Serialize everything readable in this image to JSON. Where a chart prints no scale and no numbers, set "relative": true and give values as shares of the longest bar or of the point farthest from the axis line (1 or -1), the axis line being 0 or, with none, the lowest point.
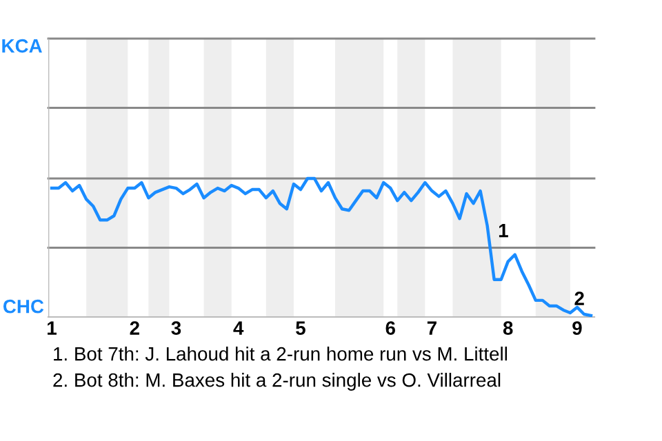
{
  "chart_data": {
    "type": "line",
    "relative": true,
    "categories": [
      "1",
      null,
      null,
      null,
      null,
      null,
      null,
      null,
      null,
      null,
      null,
      null,
      "2",
      null,
      null,
      null,
      null,
      null,
      "3",
      null,
      null,
      null,
      null,
      null,
      null,
      null,
      null,
      "4",
      null,
      null,
      null,
      null,
      null,
      null,
      null,
      null,
      "5",
      null,
      null,
      null,
      null,
      null,
      null,
      null,
      null,
      null,
      null,
      null,
      null,
      "6",
      null,
      null,
      null,
      null,
      null,
      "7",
      null,
      null,
      null,
      null,
      null,
      null,
      null,
      null,
      null,
      null,
      "8",
      null,
      null,
      null,
      null,
      null,
      null,
      null,
      null,
      null,
      "9",
      null,
      null
    ],
    "marker": "none",
    "line_style": "solid",
    "ref_lines": [
      {
        "axis": "y",
        "value": 2.01,
        "label": "KCA",
        "color": "#888888"
      },
      {
        "axis": "y",
        "value": 1.51,
        "color": "#888888"
      },
      {
        "axis": "y",
        "value": 1,
        "color": "#888888"
      },
      {
        "axis": "y",
        "value": 0.5,
        "color": "#888888"
      }
    ],
    "ylabel": "CHC",
    "series": [
      {
        "color": "#1a8cff",
        "values": [
          0.93,
          0.93,
          0.97,
          0.91,
          0.95,
          0.85,
          0.8,
          0.7,
          0.7,
          0.73,
          0.85,
          0.93,
          0.93,
          0.97,
          0.86,
          0.9,
          0.92,
          0.94,
          0.93,
          0.89,
          0.92,
          0.96,
          0.86,
          0.9,
          0.93,
          0.91,
          0.95,
          0.93,
          0.89,
          0.92,
          0.92,
          0.86,
          0.91,
          0.82,
          0.78,
          0.96,
          0.92,
          1,
          1,
          0.91,
          0.97,
          0.86,
          0.78,
          0.77,
          0.84,
          0.91,
          0.91,
          0.86,
          0.97,
          0.93,
          0.84,
          0.9,
          0.84,
          0.9,
          0.97,
          0.91,
          0.87,
          0.91,
          0.82,
          0.71,
          0.89,
          0.82,
          0.91,
          0.66,
          0.27,
          0.27,
          0.4,
          0.45,
          0.33,
          0.23,
          0.12,
          0.12,
          0.08,
          0.08,
          0.05,
          0.03,
          0.07,
          0.02,
          0.01
        ]
      }
    ],
    "annotations": [
      {
        "text": "1",
        "y": 0.52
      },
      {
        "text": "2",
        "y": 0.03
      },
      "1. Bot 7th: J. Lahoud hit a 2-run home run vs M. Littell",
      "2. Bot 8th: M. Baxes hit a 2-run single vs O. Villarreal"
    ]
  }
}
